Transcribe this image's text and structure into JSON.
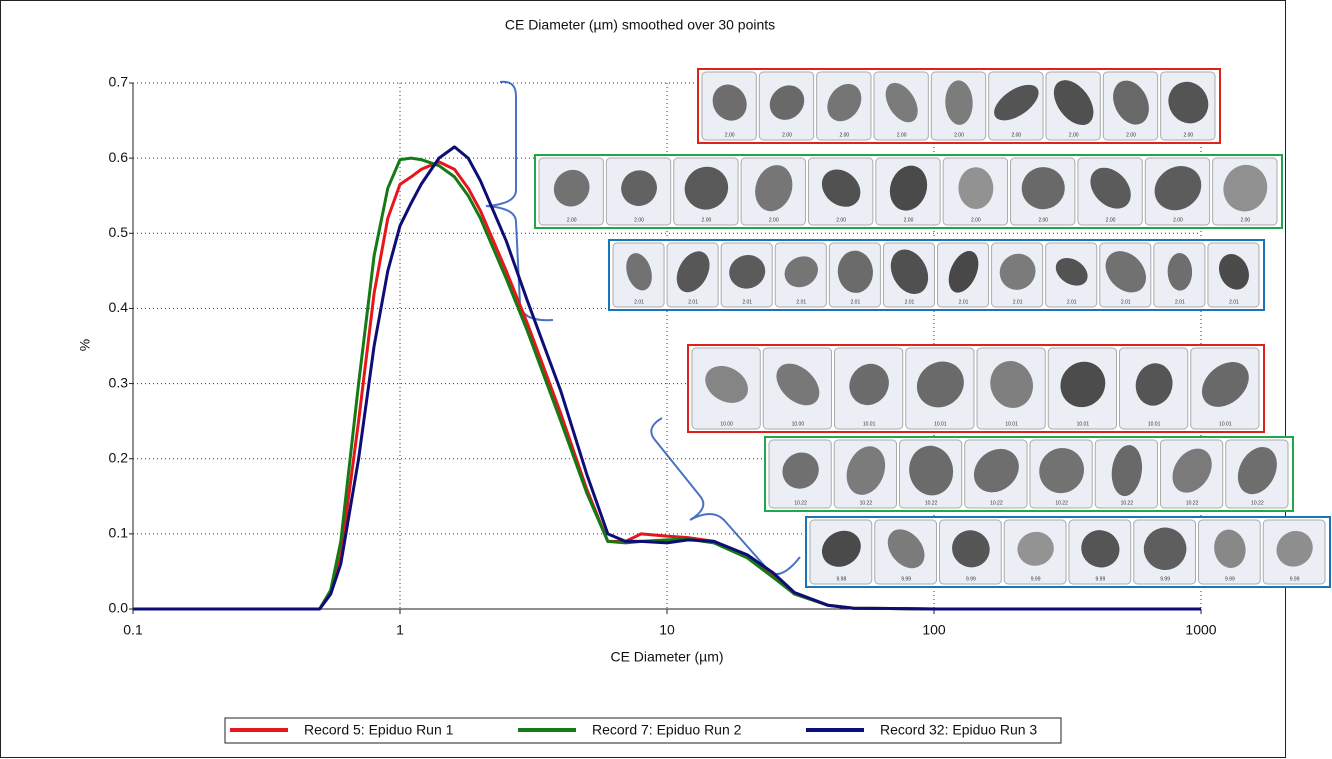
{
  "chart_data": {
    "type": "line",
    "title": "CE Diameter (µm) smoothed over 30 points",
    "x_label": "CE Diameter (µm)",
    "y_label": "%",
    "x_scale": "log",
    "grid": true,
    "legend": "bottom",
    "xlim": [
      0.1,
      1000
    ],
    "xticks": [
      0.1,
      1,
      10,
      100,
      1000
    ],
    "ylim": [
      0,
      0.7
    ],
    "yticks": [
      {
        "value": 0,
        "label": "0.0"
      },
      0.1,
      0.2,
      0.3,
      0.4,
      0.5,
      0.6,
      0.7
    ],
    "x": [
      0.1,
      0.5,
      0.55,
      0.6,
      0.7,
      0.8,
      0.9,
      1.0,
      1.1,
      1.2,
      1.4,
      1.6,
      1.8,
      2,
      2.5,
      3,
      4,
      5,
      6,
      7,
      8,
      10,
      12,
      15,
      20,
      25,
      30,
      40,
      50,
      100,
      1000
    ],
    "series": [
      {
        "name": "Record 5: Epiduo Run 1",
        "color": "#e8151b",
        "values": [
          0,
          0,
          0.02,
          0.07,
          0.25,
          0.42,
          0.52,
          0.565,
          0.575,
          0.585,
          0.595,
          0.585,
          0.56,
          0.53,
          0.45,
          0.38,
          0.26,
          0.16,
          0.09,
          0.09,
          0.1,
          0.097,
          0.095,
          0.09,
          0.07,
          0.045,
          0.02,
          0.005,
          0.001,
          0,
          0
        ]
      },
      {
        "name": "Record 7: Epiduo Run 2",
        "color": "#157a15",
        "values": [
          0,
          0,
          0.025,
          0.09,
          0.3,
          0.47,
          0.56,
          0.598,
          0.6,
          0.598,
          0.59,
          0.575,
          0.55,
          0.52,
          0.44,
          0.37,
          0.25,
          0.155,
          0.09,
          0.088,
          0.09,
          0.092,
          0.093,
          0.088,
          0.068,
          0.042,
          0.02,
          0.005,
          0.001,
          0,
          0
        ]
      },
      {
        "name": "Record 32: Epiduo Run 3",
        "color": "#0d0d78",
        "values": [
          0,
          0,
          0.02,
          0.06,
          0.2,
          0.35,
          0.45,
          0.51,
          0.54,
          0.565,
          0.6,
          0.615,
          0.6,
          0.57,
          0.49,
          0.41,
          0.29,
          0.18,
          0.1,
          0.09,
          0.09,
          0.088,
          0.092,
          0.09,
          0.072,
          0.048,
          0.022,
          0.005,
          0.001,
          0,
          0
        ]
      }
    ],
    "particle_strips": [
      {
        "color": "#e0201b",
        "labels": [
          "2.00",
          "2.00",
          "2.00",
          "2.00",
          "2.00",
          "2.00",
          "2.00",
          "2.00",
          "2.00"
        ]
      },
      {
        "color": "#1fa84a",
        "labels": [
          "2.00",
          "2.00",
          "2.00",
          "2.00",
          "2.00",
          "2.00",
          "2.00",
          "2.00",
          "2.00",
          "2.00",
          "2.00"
        ]
      },
      {
        "color": "#1a75b8",
        "labels": [
          "2.01",
          "2.01",
          "2.01",
          "2.01",
          "2.01",
          "2.01",
          "2.01",
          "2.01",
          "2.01",
          "2.01",
          "2.01",
          "2.01"
        ]
      },
      {
        "color": "#e0201b",
        "labels": [
          "10.00",
          "10.00",
          "10.01",
          "10.01",
          "10.01",
          "10.01",
          "10.01",
          "10.01"
        ]
      },
      {
        "color": "#1fa84a",
        "labels": [
          "10.22",
          "10.22",
          "10.22",
          "10.22",
          "10.22",
          "10.22",
          "10.22",
          "10.22"
        ]
      },
      {
        "color": "#1a75b8",
        "labels": [
          "9.98",
          "9.99",
          "9.99",
          "9.99",
          "9.99",
          "9.99",
          "9.99",
          "9.99"
        ]
      }
    ]
  }
}
